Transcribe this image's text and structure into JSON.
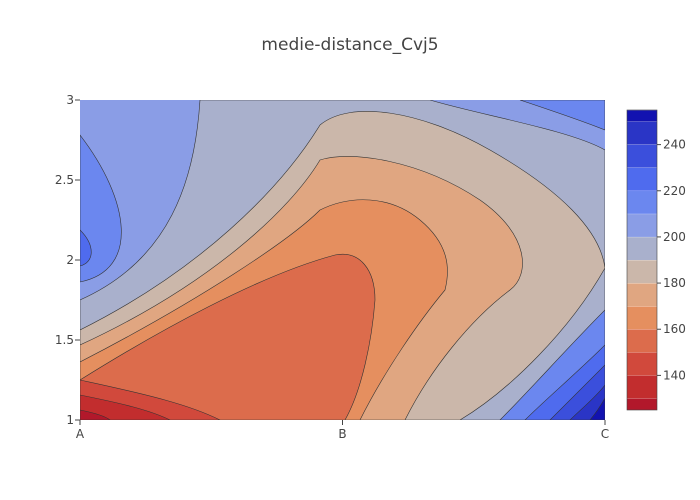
{
  "chart_data": {
    "type": "contour",
    "title": "medie-distance_Cvj5",
    "xlabel": "",
    "ylabel": "",
    "x_categories": [
      "A",
      "B",
      "C"
    ],
    "y_ticks": [
      "1",
      "1.5",
      "2",
      "2.5",
      "3"
    ],
    "ylim": [
      1,
      3
    ],
    "colorbar": {
      "range": [
        125,
        255
      ],
      "step": 10,
      "tick_values": [
        140,
        160,
        180,
        200,
        220,
        240
      ],
      "tick_labels": [
        "140",
        "160",
        "180",
        "200",
        "220",
        "240"
      ],
      "colors": [
        "#b2182b",
        "#c22d2e",
        "#d1493c",
        "#dc6c4c",
        "#e58f5f",
        "#e0a681",
        "#cbb7aa",
        "#a9b0cc",
        "#8a9de6",
        "#6b87ef",
        "#4f6bee",
        "#3b4fdc",
        "#2a35c6",
        "#1212b0"
      ]
    }
  }
}
